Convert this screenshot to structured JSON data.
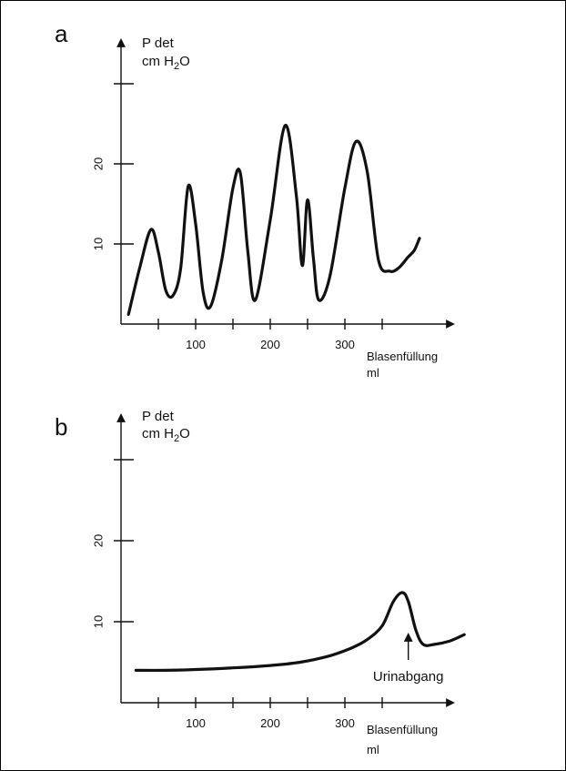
{
  "colors": {
    "ink": "#111111",
    "background": "#ffffff",
    "frame": "#000000"
  },
  "chart_data": [
    {
      "type": "line",
      "panel": "a",
      "ylabel_line1": "P det",
      "ylabel_prefix": "cm H",
      "ylabel_sub": "2",
      "ylabel_suffix": "O",
      "xlabel_line1": "Blasenfüllung",
      "xlabel_line2": "ml",
      "x_ticks": [
        50,
        100,
        150,
        200,
        250,
        300,
        350
      ],
      "x_tick_labels": [
        {
          "value": 100,
          "label": "100"
        },
        {
          "value": 200,
          "label": "200"
        },
        {
          "value": 300,
          "label": "300"
        }
      ],
      "y_ticks": [
        10,
        20,
        30
      ],
      "y_tick_labels": [
        {
          "value": 10,
          "label": "10"
        },
        {
          "value": 20,
          "label": "20"
        }
      ],
      "xlim": [
        0,
        450
      ],
      "ylim": [
        0,
        36
      ],
      "series": [
        {
          "x": [
            10,
            25,
            40,
            50,
            60,
            70,
            80,
            90,
            100,
            110,
            120,
            135,
            150,
            160,
            170,
            180,
            200,
            220,
            235,
            243,
            250,
            258,
            265,
            280,
            300,
            315,
            330,
            345,
            360,
            372,
            385,
            393,
            400
          ],
          "y": [
            1.2,
            7,
            11.8,
            9,
            4.2,
            3.6,
            7,
            17.2,
            12.5,
            4,
            2.2,
            8,
            17,
            18.8,
            9,
            3,
            13,
            24.8,
            16,
            7.3,
            15.5,
            8,
            3,
            6,
            17,
            22.8,
            19,
            8,
            6.6,
            7,
            8.4,
            9.2,
            10.7
          ]
        }
      ]
    },
    {
      "type": "line",
      "panel": "b",
      "ylabel_line1": "P det",
      "ylabel_prefix": "cm H",
      "ylabel_sub": "2",
      "ylabel_suffix": "O",
      "xlabel_line1": "Blasenfüllung",
      "xlabel_line2": "ml",
      "x_ticks": [
        50,
        100,
        150,
        200,
        250,
        300,
        350
      ],
      "x_tick_labels": [
        {
          "value": 100,
          "label": "100"
        },
        {
          "value": 200,
          "label": "200"
        },
        {
          "value": 300,
          "label": "300"
        }
      ],
      "y_ticks": [
        10,
        20,
        30
      ],
      "y_tick_labels": [
        {
          "value": 10,
          "label": "10"
        },
        {
          "value": 20,
          "label": "20"
        }
      ],
      "xlim": [
        0,
        450
      ],
      "ylim": [
        0,
        36
      ],
      "annotation": {
        "text": "Urinabgang",
        "x": 385
      },
      "series": [
        {
          "x": [
            20,
            60,
            100,
            150,
            200,
            240,
            280,
            310,
            330,
            350,
            365,
            377,
            385,
            395,
            405,
            420,
            440,
            460
          ],
          "y": [
            4,
            4,
            4.1,
            4.3,
            4.6,
            5,
            5.8,
            6.8,
            7.8,
            9.5,
            12.5,
            13.6,
            12.5,
            9,
            7.2,
            7.2,
            7.6,
            8.4
          ]
        }
      ]
    }
  ]
}
